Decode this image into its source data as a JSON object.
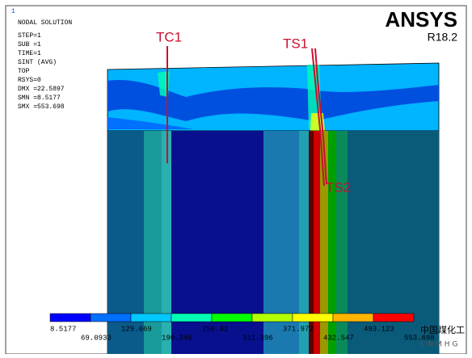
{
  "window_number": "1",
  "info": [
    "NODAL SOLUTION",
    "STEP=1",
    "SUB =1",
    "TIME=1",
    "SINT      (AVG)",
    "TOP",
    "RSYS=0",
    "DMX =22.5897",
    "SMN =8.5177",
    "SMX =553.698"
  ],
  "brand": "ANSYS",
  "version": "R18.2",
  "annotations": [
    "TC1",
    "TS1",
    "TS2"
  ],
  "legend": {
    "labels": [
      "8.5177",
      "69.0933",
      "129.669",
      "190.245",
      "250.82",
      "311.396",
      "371.972",
      "432.547",
      "493.123",
      "553.698"
    ],
    "colors": [
      "#0000ff",
      "#0070ff",
      "#00c8ff",
      "#00ffb4",
      "#00ff00",
      "#b4ff00",
      "#ffff00",
      "#ffb400",
      "#ff0000"
    ]
  },
  "watermark": {
    "title": "中国煤化工",
    "subtitle": "CNMHG"
  }
}
